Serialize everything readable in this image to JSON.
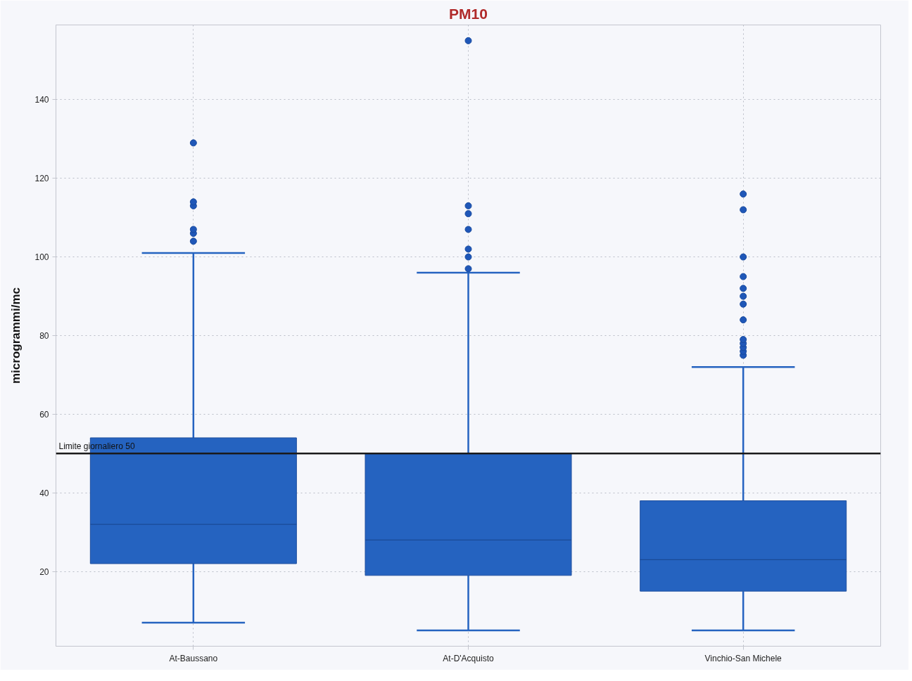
{
  "chart_data": {
    "type": "box",
    "title": "PM10",
    "ylabel": "microgrammi/mc",
    "categories": [
      "At-Baussano",
      "At-D'Acquisto",
      "Vinchio-San Michele"
    ],
    "series": [
      {
        "color": "#2563c0",
        "boxes": [
          {
            "low": 7,
            "q1": 22,
            "median": 32,
            "q3": 54,
            "high": 101,
            "outliers": [
              104,
              106,
              107,
              113,
              114,
              129
            ]
          },
          {
            "low": 5,
            "q1": 19,
            "median": 28,
            "q3": 50,
            "high": 96,
            "outliers": [
              97,
              100,
              102,
              107,
              111,
              113,
              155
            ]
          },
          {
            "low": 5,
            "q1": 15,
            "median": 23,
            "q3": 38,
            "high": 72,
            "outliers": [
              75,
              76,
              77,
              78,
              79,
              84,
              88,
              90,
              92,
              95,
              100,
              112,
              116
            ]
          }
        ]
      }
    ],
    "ylim": [
      1,
      159
    ],
    "yticks": [
      20,
      40,
      60,
      80,
      100,
      120,
      140
    ],
    "grid": true,
    "marker": "circle",
    "ref_lines": [
      {
        "axis": "y",
        "value": 50,
        "label": "Limite giornaliero 50",
        "color": "#1a1a1a"
      }
    ]
  }
}
